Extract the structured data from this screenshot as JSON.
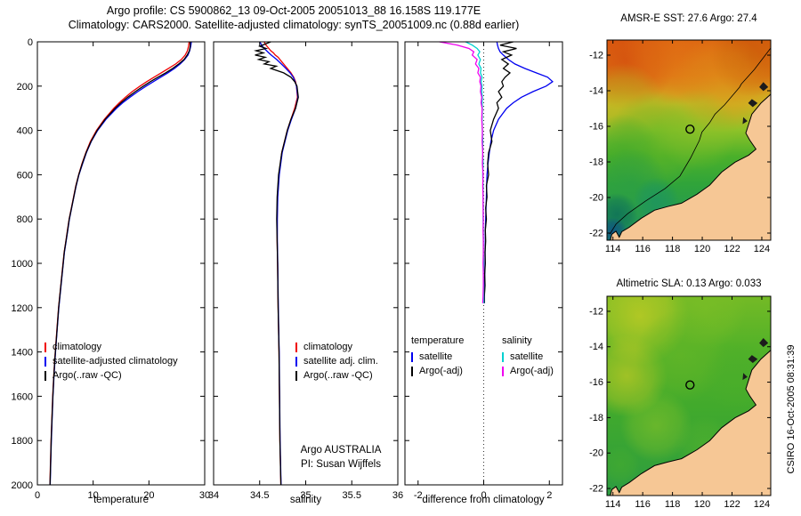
{
  "figure": {
    "title_line1": "Argo profile: CS 5900862_13 09-Oct-2005 20051013_88 16.158S 119.177E",
    "title_line2": "Climatology: CARS2000. Satellite-adjusted climatology: synTS_20051009.nc (0.88d earlier)",
    "credit": "CSIRO 16-Oct-2005 08:31:39"
  },
  "chart_data": [
    {
      "type": "line",
      "xlabel": "temperature",
      "ylabel": "",
      "xlim": [
        0,
        30
      ],
      "xticks": [
        0,
        10,
        20,
        30
      ],
      "ylim": [
        0,
        2000
      ],
      "y_reversed": true,
      "yticks": [
        0,
        200,
        400,
        600,
        800,
        1000,
        1200,
        1400,
        1600,
        1800,
        2000
      ],
      "series": [
        {
          "name": "climatology",
          "color": "#f00000",
          "depths": [
            0,
            20,
            40,
            60,
            80,
            100,
            120,
            140,
            160,
            180,
            200,
            225,
            250,
            275,
            300,
            350,
            400,
            450,
            500,
            550,
            600,
            650,
            700,
            750,
            800,
            850,
            900,
            950,
            1000,
            1100,
            1200,
            1300,
            1400,
            1500,
            1600,
            1700,
            1800,
            1900,
            2000
          ],
          "values": [
            27.2,
            27.1,
            26.9,
            26.5,
            25.8,
            24.8,
            23.5,
            22.2,
            20.9,
            19.6,
            18.4,
            17.0,
            15.8,
            14.7,
            13.7,
            12.0,
            10.6,
            9.5,
            8.7,
            8.0,
            7.4,
            6.9,
            6.5,
            6.1,
            5.7,
            5.4,
            5.1,
            4.8,
            4.6,
            4.2,
            3.8,
            3.5,
            3.2,
            2.95,
            2.75,
            2.6,
            2.45,
            2.35,
            2.25
          ]
        },
        {
          "name": "satellite-adjusted climatology",
          "color": "#0000f0",
          "depths": [
            0,
            20,
            40,
            60,
            80,
            100,
            120,
            140,
            160,
            180,
            200,
            225,
            250,
            275,
            300,
            350,
            400,
            450,
            500,
            550,
            600,
            650,
            700,
            750,
            800,
            850,
            900,
            950,
            1000,
            1100,
            1200,
            1300,
            1400,
            1500,
            1600,
            1700,
            1800,
            1900,
            2000
          ],
          "values": [
            27.6,
            27.5,
            27.3,
            27.0,
            26.4,
            25.6,
            24.6,
            23.4,
            22.1,
            20.8,
            19.5,
            18.0,
            16.6,
            15.3,
            14.2,
            12.3,
            10.8,
            9.65,
            8.8,
            8.1,
            7.45,
            6.95,
            6.55,
            6.15,
            5.75,
            5.45,
            5.15,
            4.85,
            4.65,
            4.25,
            3.85,
            3.55,
            3.25,
            3.0,
            2.8,
            2.65,
            2.5,
            2.4,
            2.3
          ]
        },
        {
          "name": "Argo(..raw -QC)",
          "color": "#000000",
          "depths": [
            0,
            20,
            40,
            60,
            80,
            100,
            120,
            140,
            160,
            180,
            200,
            225,
            250,
            275,
            300,
            350,
            400,
            450,
            500,
            550,
            600,
            650,
            700,
            750,
            800,
            850,
            900,
            950,
            1000,
            1100,
            1200,
            1300,
            1400,
            1500,
            1600,
            1700,
            1800,
            1900,
            2000
          ],
          "values": [
            27.4,
            27.4,
            27.25,
            26.85,
            26.3,
            25.35,
            24.25,
            23.0,
            21.6,
            20.25,
            19.0,
            17.55,
            16.2,
            15.0,
            13.95,
            12.15,
            10.7,
            9.6,
            8.75,
            8.05,
            7.42,
            6.92,
            6.52,
            6.12,
            5.72,
            5.42,
            5.12,
            4.82,
            4.62,
            4.22,
            3.82,
            3.52,
            3.22,
            2.97,
            2.77,
            2.62,
            2.47,
            2.37,
            2.27
          ]
        }
      ]
    },
    {
      "type": "line",
      "xlabel": "salinity",
      "ylabel": "",
      "xlim": [
        34,
        36
      ],
      "xticks": [
        34,
        34.5,
        35,
        35.5,
        36
      ],
      "ylim": [
        0,
        2000
      ],
      "y_reversed": true,
      "yticks": [
        0,
        200,
        400,
        600,
        800,
        1000,
        1200,
        1400,
        1600,
        1800,
        2000
      ],
      "annotation": [
        "Argo AUSTRALIA",
        "PI: Susan Wijffels"
      ],
      "series": [
        {
          "name": "climatology",
          "color": "#f00000",
          "depths": [
            0,
            10,
            20,
            30,
            40,
            50,
            60,
            70,
            80,
            90,
            100,
            110,
            120,
            140,
            160,
            180,
            200,
            250,
            300,
            350,
            400,
            500,
            600,
            700,
            800,
            900,
            1000,
            1200,
            1400,
            1600,
            1800,
            2000
          ],
          "values": [
            34.55,
            34.56,
            34.58,
            34.6,
            34.62,
            34.65,
            34.67,
            34.7,
            34.72,
            34.74,
            34.76,
            34.78,
            34.8,
            34.84,
            34.87,
            34.89,
            34.9,
            34.91,
            34.88,
            34.84,
            34.8,
            34.74,
            34.71,
            34.695,
            34.69,
            34.69,
            34.695,
            34.7,
            34.71,
            34.715,
            34.72,
            34.73
          ]
        },
        {
          "name": "satellite adj. clim.",
          "color": "#0000f0",
          "depths": [
            0,
            10,
            20,
            30,
            40,
            50,
            60,
            70,
            80,
            90,
            100,
            110,
            120,
            140,
            160,
            180,
            200,
            250,
            300,
            350,
            400,
            500,
            600,
            700,
            800,
            900,
            1000,
            1200,
            1400,
            1600,
            1800,
            2000
          ],
          "values": [
            34.5,
            34.515,
            34.53,
            34.55,
            34.575,
            34.6,
            34.625,
            34.655,
            34.685,
            34.71,
            34.735,
            34.76,
            34.785,
            34.83,
            34.865,
            34.885,
            34.9,
            34.915,
            34.89,
            34.845,
            34.805,
            34.745,
            34.713,
            34.697,
            34.692,
            34.692,
            34.697,
            34.702,
            34.712,
            34.717,
            34.722,
            34.732
          ]
        },
        {
          "name": "Argo(..raw -QC)",
          "color": "#000000",
          "depths": [
            0,
            10,
            20,
            30,
            40,
            50,
            60,
            70,
            80,
            90,
            100,
            110,
            120,
            140,
            160,
            180,
            200,
            250,
            300,
            350,
            400,
            500,
            600,
            700,
            800,
            900,
            1000,
            1200,
            1400,
            1600,
            1800,
            2000
          ],
          "values": [
            34.62,
            34.56,
            34.5,
            34.57,
            34.46,
            34.54,
            34.45,
            34.56,
            34.49,
            34.6,
            34.55,
            34.68,
            34.62,
            34.76,
            34.84,
            34.88,
            34.905,
            34.92,
            34.89,
            34.84,
            34.8,
            34.74,
            34.705,
            34.69,
            34.685,
            34.69,
            34.695,
            34.7,
            34.71,
            34.715,
            34.72,
            34.73
          ]
        }
      ]
    },
    {
      "type": "line",
      "xlabel": "difference from climatology",
      "ylabel": "",
      "xlim": [
        -2.4,
        2.4
      ],
      "xticks": [
        -2,
        0,
        2
      ],
      "ylim": [
        0,
        2000
      ],
      "y_reversed": true,
      "yticks": [
        0,
        200,
        400,
        600,
        800,
        1000,
        1200,
        1400,
        1600,
        1800,
        2000
      ],
      "zero_line": true,
      "legend": {
        "columns": [
          {
            "header": "temperature",
            "items": [
              {
                "label": "satellite",
                "color": "#0000f0"
              },
              {
                "label": "Argo(-adj)",
                "color": "#000000"
              }
            ]
          },
          {
            "header": "salinity",
            "items": [
              {
                "label": "satellite",
                "color": "#00d0d0"
              },
              {
                "label": "Argo(-adj)",
                "color": "#f000f0"
              }
            ]
          }
        ]
      },
      "series": [
        {
          "name": "temperature satellite",
          "color": "#0000f0",
          "depths": [
            0,
            15,
            30,
            45,
            60,
            80,
            100,
            120,
            140,
            160,
            180,
            200,
            225,
            250,
            275,
            300,
            350,
            400,
            450,
            500,
            550,
            600,
            650,
            700,
            750,
            800,
            850,
            900,
            950,
            1000,
            1050,
            1100,
            1150,
            1180
          ],
          "values": [
            0.4,
            0.42,
            0.45,
            0.5,
            0.6,
            0.75,
            0.95,
            1.25,
            1.6,
            1.95,
            2.1,
            1.9,
            1.5,
            1.15,
            0.9,
            0.7,
            0.45,
            0.3,
            0.22,
            0.17,
            0.13,
            0.1,
            0.09,
            0.08,
            0.07,
            0.06,
            0.05,
            0.05,
            0.04,
            0.04,
            0.03,
            0.03,
            0.02,
            0.02
          ]
        },
        {
          "name": "temperature Argo(-adj)",
          "color": "#000000",
          "depths": [
            0,
            15,
            30,
            45,
            60,
            80,
            100,
            120,
            140,
            160,
            180,
            200,
            225,
            250,
            275,
            300,
            350,
            400,
            450,
            500,
            550,
            600,
            650,
            700,
            750,
            800,
            850,
            900,
            950,
            1000,
            1050,
            1100,
            1150,
            1180
          ],
          "values": [
            0.9,
            0.5,
            1.0,
            0.6,
            0.85,
            0.55,
            0.75,
            0.6,
            0.8,
            0.65,
            0.55,
            0.6,
            0.45,
            0.55,
            0.4,
            0.45,
            0.3,
            0.2,
            0.25,
            0.15,
            0.12,
            0.15,
            0.08,
            0.1,
            0.06,
            0.08,
            0.05,
            0.06,
            0.04,
            0.05,
            0.03,
            0.04,
            0.02,
            0.02
          ]
        },
        {
          "name": "salinity satellite",
          "color": "#00d0d0",
          "depths": [
            0,
            15,
            30,
            45,
            60,
            80,
            100,
            120,
            140,
            160,
            180,
            200,
            225,
            250,
            275,
            300,
            350,
            400,
            450,
            500,
            550,
            600,
            650,
            700,
            750,
            800,
            850,
            900,
            950,
            1000,
            1050,
            1100,
            1150,
            1180
          ],
          "values": [
            -0.55,
            -0.35,
            -0.2,
            -0.12,
            -0.18,
            -0.1,
            -0.15,
            -0.08,
            -0.1,
            -0.05,
            -0.08,
            -0.05,
            -0.06,
            -0.04,
            -0.05,
            -0.04,
            -0.05,
            -0.04,
            -0.03,
            -0.03,
            -0.02,
            -0.03,
            -0.02,
            -0.02,
            -0.01,
            -0.02,
            -0.01,
            -0.01,
            -0.01,
            0.0,
            -0.01,
            0.0,
            0.0,
            0.0
          ]
        },
        {
          "name": "salinity Argo(-adj)",
          "color": "#f000f0",
          "depths": [
            0,
            15,
            30,
            45,
            60,
            80,
            100,
            120,
            140,
            160,
            180,
            200,
            225,
            250,
            275,
            300,
            350,
            400,
            450,
            500,
            550,
            600,
            650,
            700,
            750,
            800,
            850,
            900,
            950,
            1000,
            1050,
            1100,
            1150,
            1180
          ],
          "values": [
            -1.35,
            -0.8,
            -0.45,
            -0.3,
            -0.35,
            -0.2,
            -0.25,
            -0.15,
            -0.18,
            -0.1,
            -0.12,
            -0.08,
            -0.1,
            -0.06,
            -0.08,
            -0.05,
            -0.06,
            -0.04,
            -0.05,
            -0.03,
            -0.04,
            -0.02,
            -0.03,
            -0.02,
            -0.02,
            -0.01,
            -0.02,
            -0.01,
            -0.01,
            -0.02,
            -0.01,
            -0.01,
            -0.02,
            -0.03
          ]
        }
      ]
    }
  ],
  "maps": [
    {
      "title": "AMSR-E SST: 27.6 Argo: 27.4",
      "xticks": [
        114,
        116,
        118,
        120,
        122,
        124
      ],
      "yticks": [
        -12,
        -14,
        -16,
        -18,
        -20,
        -22
      ],
      "lon_range": [
        113.6,
        124.6
      ],
      "lat_range": [
        -22.4,
        -11.15
      ],
      "marker": {
        "lon": 119.177,
        "lat": -16.158
      }
    },
    {
      "title": "Altimetric SLA: 0.13 Argo: 0.033",
      "xticks": [
        114,
        116,
        118,
        120,
        122,
        124
      ],
      "yticks": [
        -12,
        -14,
        -16,
        -18,
        -20,
        -22
      ],
      "lon_range": [
        113.6,
        124.6
      ],
      "lat_range": [
        -22.4,
        -11.15
      ],
      "marker": {
        "lon": 119.177,
        "lat": -16.158
      }
    }
  ]
}
